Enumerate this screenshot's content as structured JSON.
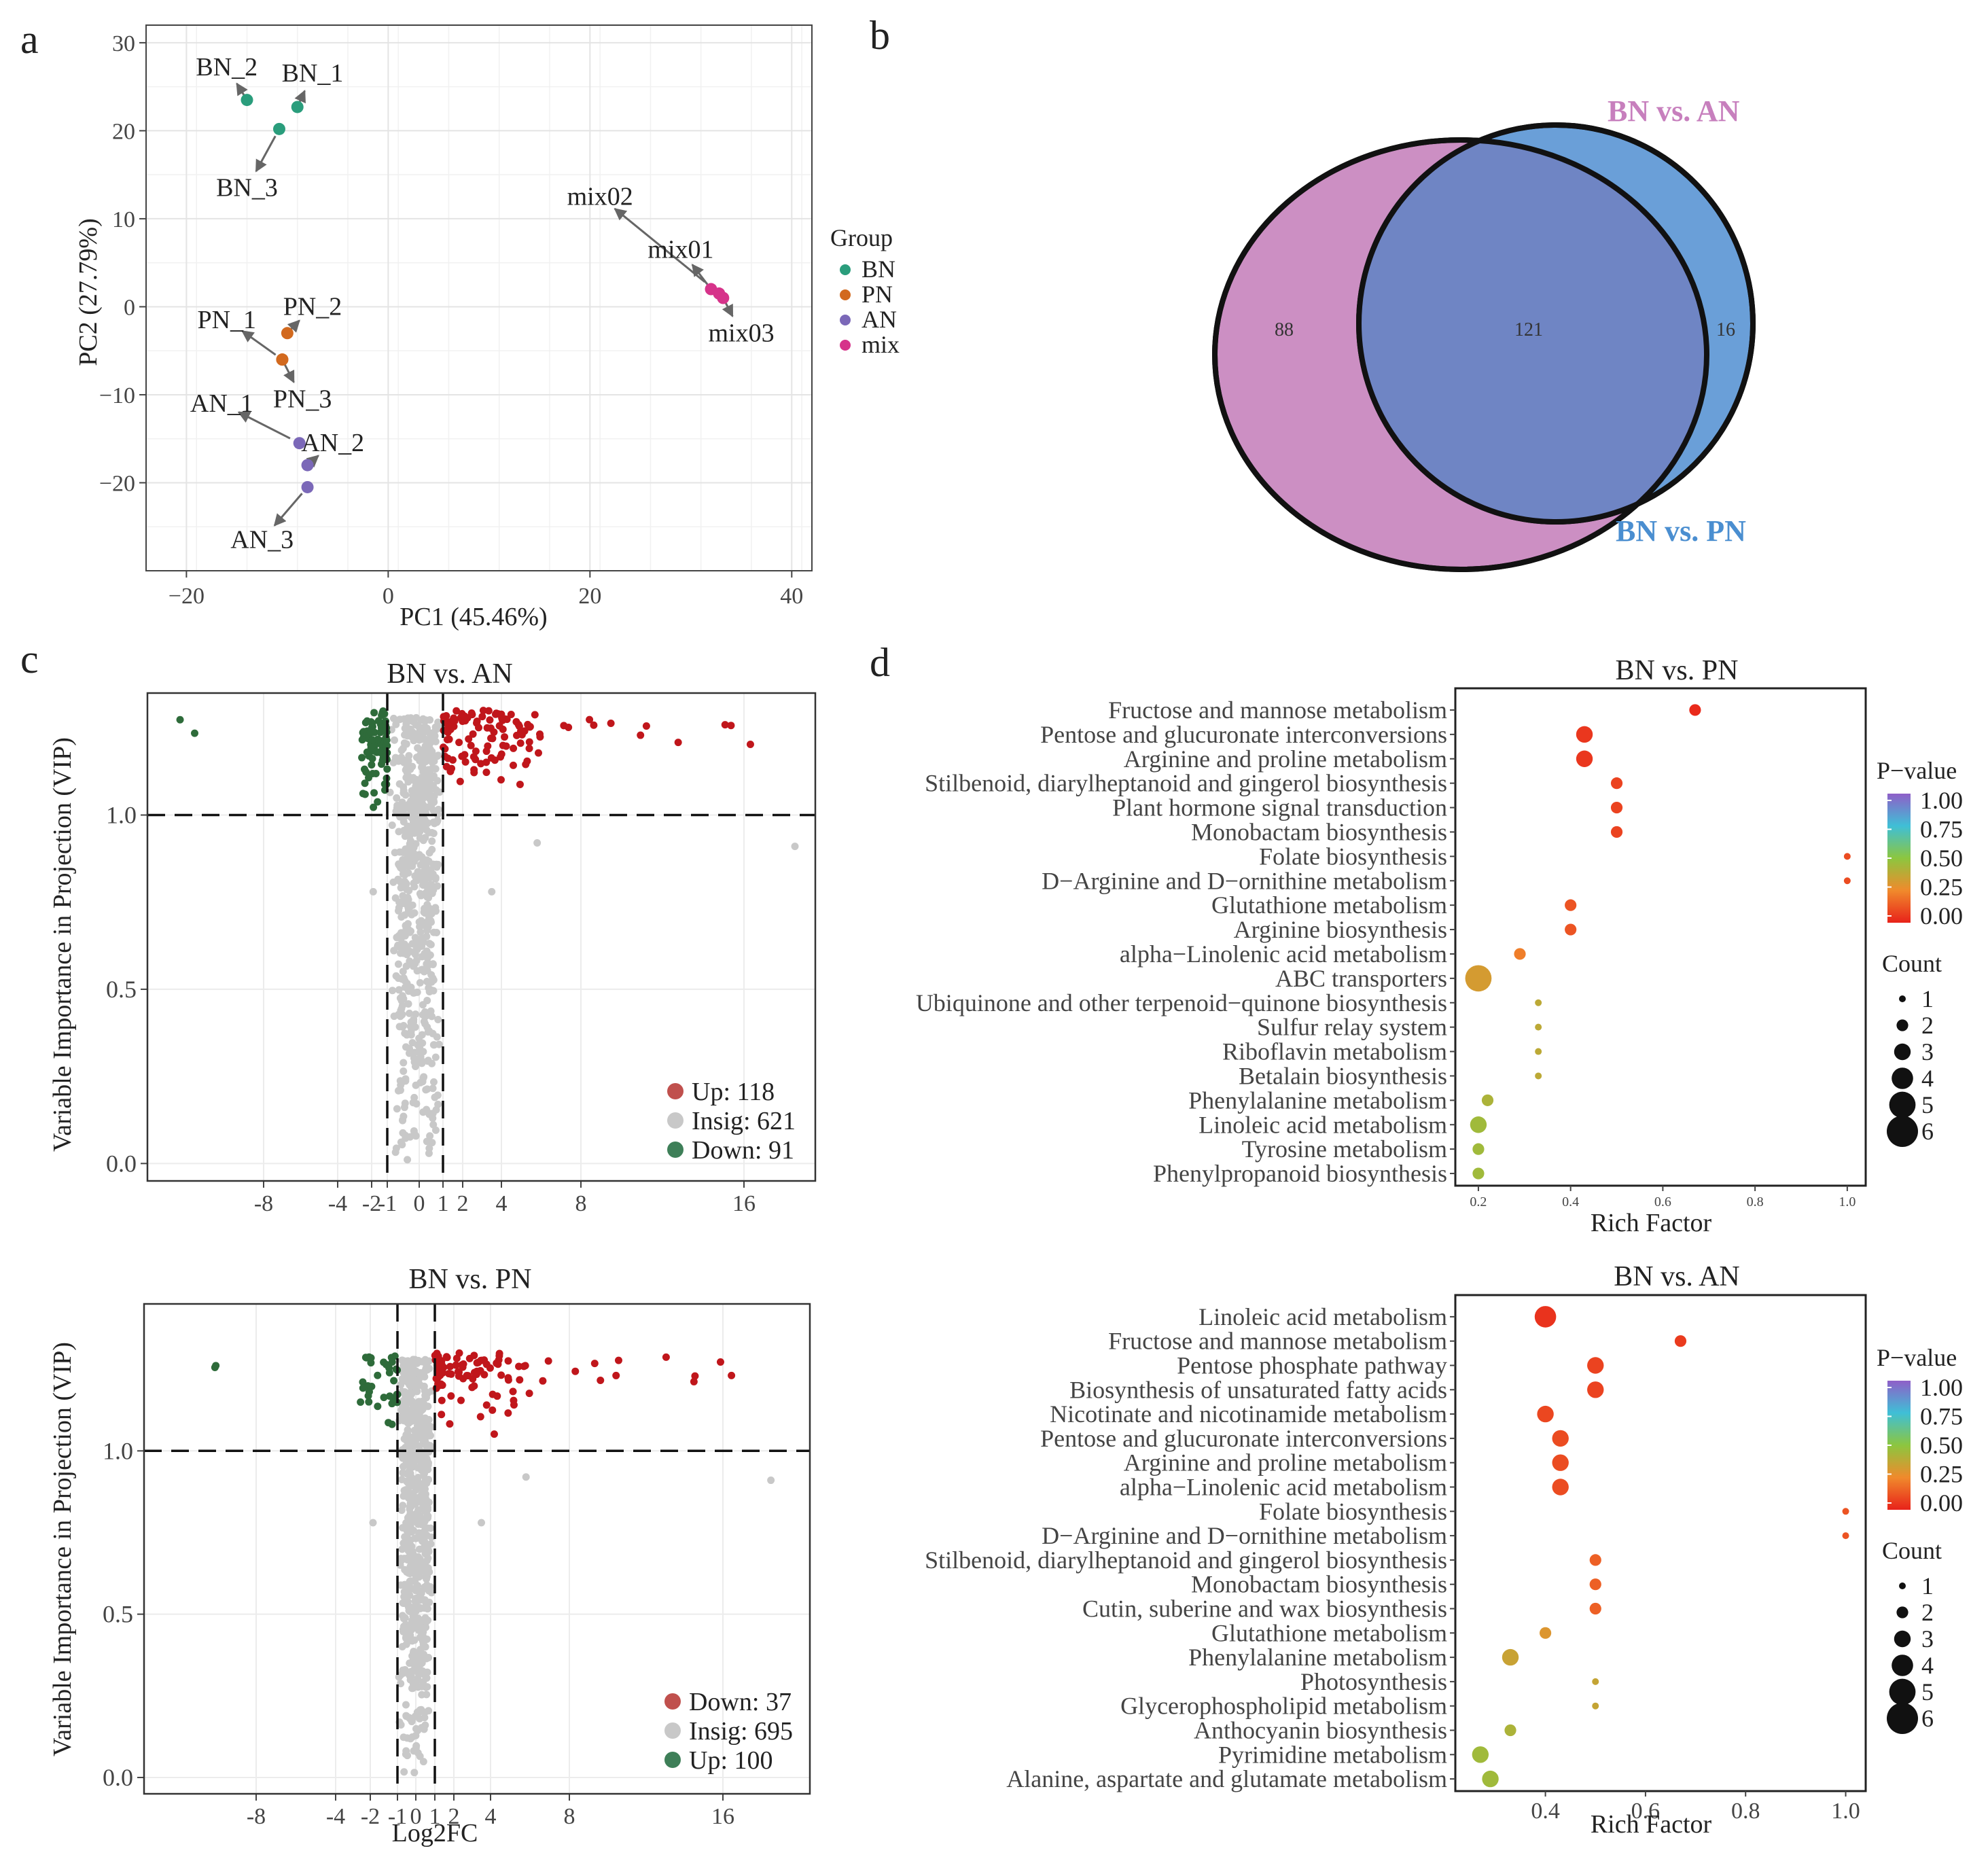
{
  "panel_labels": [
    "a",
    "b",
    "c",
    "d"
  ],
  "chart_data": [
    {
      "panel": "a",
      "type": "scatter",
      "title": "",
      "xlabel": "PC1 (45.46%)",
      "ylabel": "PC2 (27.79%)",
      "xlim": [
        -24,
        42
      ],
      "ylim": [
        -30,
        32
      ],
      "xticks": [
        "−20",
        "0",
        "20",
        "40"
      ],
      "xtick_values": [
        -20,
        0,
        20,
        40
      ],
      "yticks": [
        "30",
        "20",
        "10",
        "0",
        "−10",
        "−20"
      ],
      "ytick_values": [
        30,
        20,
        10,
        0,
        -10,
        -20
      ],
      "legend_title": "Group",
      "legend": [
        {
          "name": "BN",
          "color": "#2a9d7c"
        },
        {
          "name": "PN",
          "color": "#d2691e"
        },
        {
          "name": "AN",
          "color": "#7b68b8"
        },
        {
          "name": "mix",
          "color": "#d6338a"
        }
      ],
      "points": [
        {
          "label": "BN_1",
          "group": "BN",
          "x": -9,
          "y": 22.7,
          "lx": -7.5,
          "ly": 26.5
        },
        {
          "label": "BN_2",
          "group": "BN",
          "x": -14,
          "y": 23.5,
          "lx": -16,
          "ly": 27.2
        },
        {
          "label": "BN_3",
          "group": "BN",
          "x": -10.8,
          "y": 20.2,
          "lx": -14,
          "ly": 13.5
        },
        {
          "label": "PN_1",
          "group": "PN",
          "x": -10.5,
          "y": -6,
          "lx": -16,
          "ly": -1.5
        },
        {
          "label": "PN_2",
          "group": "PN",
          "x": -10,
          "y": -3,
          "lx": -7.5,
          "ly": 0
        },
        {
          "label": "PN_3",
          "group": "PN",
          "x": -10.5,
          "y": -6,
          "lx": -8.5,
          "ly": -10.5
        },
        {
          "label": "AN_1",
          "group": "AN",
          "x": -8.8,
          "y": -15.5,
          "lx": -16.5,
          "ly": -11
        },
        {
          "label": "AN_2",
          "group": "AN",
          "x": -8,
          "y": -18,
          "lx": -5.5,
          "ly": -15.5
        },
        {
          "label": "AN_3",
          "group": "AN",
          "x": -8,
          "y": -20.5,
          "lx": -12.5,
          "ly": -26.5
        },
        {
          "label": "mix01",
          "group": "mix",
          "x": 32,
          "y": 2,
          "lx": 29,
          "ly": 6.5
        },
        {
          "label": "mix02",
          "group": "mix",
          "x": 32.8,
          "y": 1.5,
          "lx": 21,
          "ly": 12.5
        },
        {
          "label": "mix03",
          "group": "mix",
          "x": 33.2,
          "y": 1,
          "lx": 35,
          "ly": -3
        }
      ]
    },
    {
      "panel": "b",
      "type": "venn",
      "sets": [
        {
          "name": "BN vs. AN",
          "color": "#cc8fc3"
        },
        {
          "name": "BN vs. PN",
          "color": "#6a9fd8"
        }
      ],
      "intersection_color": "#6f85c4",
      "counts": {
        "only_a": "88",
        "both": "121",
        "only_b": "16"
      }
    },
    {
      "panel": "c-top",
      "type": "scatter",
      "title": "BN vs. AN",
      "xlabel": "",
      "ylabel": "Variable Importance in Projection (VIP)",
      "x_tick_labels": [
        "-8",
        "-4",
        "-2",
        "-1",
        "0",
        "1",
        "2",
        "4",
        "8",
        "16"
      ],
      "x_tick_values": [
        -8,
        -4,
        -2,
        -1,
        0,
        1,
        2,
        4,
        8,
        16
      ],
      "y_tick_labels": [
        "0.0",
        "0.5",
        "1.0"
      ],
      "y_tick_values": [
        0.0,
        0.5,
        1.0
      ],
      "ylim": [
        -0.05,
        1.35
      ],
      "thresholds": {
        "vip": 1.0,
        "log2fc": [
          -1,
          1
        ]
      },
      "legend": [
        {
          "name": "Up: 118",
          "color": "#c0504d"
        },
        {
          "name": "Insig: 621",
          "color": "#c8c8c8"
        },
        {
          "name": "Down: 91",
          "color": "#3e7f58"
        }
      ],
      "series": [
        {
          "name": "Up",
          "color": "#c0161b",
          "n": 118
        },
        {
          "name": "Insig",
          "color": "#c8c8c8",
          "n": 621
        },
        {
          "name": "Down",
          "color": "#2e6b3a",
          "n": 91
        }
      ]
    },
    {
      "panel": "c-bottom",
      "type": "scatter",
      "title": "BN vs. PN",
      "xlabel": "Log2FC",
      "ylabel": "Variable Importance in Projection (VIP)",
      "x_tick_labels": [
        "-8",
        "-4",
        "-2",
        "-1",
        "0",
        "1",
        "2",
        "4",
        "8",
        "16"
      ],
      "x_tick_values": [
        -8,
        -4,
        -2,
        -1,
        0,
        1,
        2,
        4,
        8,
        16
      ],
      "y_tick_labels": [
        "0.0",
        "0.5",
        "1.0"
      ],
      "y_tick_values": [
        0.0,
        0.5,
        1.0
      ],
      "ylim": [
        -0.05,
        1.45
      ],
      "thresholds": {
        "vip": 1.0,
        "log2fc": [
          -1,
          1
        ]
      },
      "legend": [
        {
          "name": "Down: 37",
          "color": "#c0504d"
        },
        {
          "name": "Insig: 695",
          "color": "#c8c8c8"
        },
        {
          "name": "Up: 100",
          "color": "#3e7f58"
        }
      ],
      "series": [
        {
          "name": "Up",
          "color": "#c0161b",
          "n": 100
        },
        {
          "name": "Insig",
          "color": "#c8c8c8",
          "n": 695
        },
        {
          "name": "Down",
          "color": "#2e6b3a",
          "n": 37
        }
      ]
    },
    {
      "panel": "d-top",
      "type": "scatter",
      "subtype": "kegg-bubble",
      "title": "BN vs. PN",
      "xlabel": "Rich Factor",
      "xlim": [
        0.15,
        1.04
      ],
      "x_tick_labels": [
        "0.2",
        "0.4",
        "0.6",
        "0.8",
        "1.0"
      ],
      "x_tick_values": [
        0.2,
        0.4,
        0.6,
        0.8,
        1.0
      ],
      "pathways": [
        {
          "name": "Fructose and mannose metabolism",
          "rich": 0.67,
          "p": 0.02,
          "count": 2
        },
        {
          "name": "Pentose and glucuronate interconversions",
          "rich": 0.43,
          "p": 0.05,
          "count": 3
        },
        {
          "name": "Arginine and proline metabolism",
          "rich": 0.43,
          "p": 0.05,
          "count": 3
        },
        {
          "name": "Stilbenoid, diarylheptanoid and gingerol biosynthesis",
          "rich": 0.5,
          "p": 0.08,
          "count": 2
        },
        {
          "name": "Plant hormone signal transduction",
          "rich": 0.5,
          "p": 0.08,
          "count": 2
        },
        {
          "name": "Monobactam biosynthesis",
          "rich": 0.5,
          "p": 0.08,
          "count": 2
        },
        {
          "name": "Folate biosynthesis",
          "rich": 1.0,
          "p": 0.1,
          "count": 1
        },
        {
          "name": "D−Arginine and D−ornithine metabolism",
          "rich": 1.0,
          "p": 0.1,
          "count": 1
        },
        {
          "name": "Glutathione metabolism",
          "rich": 0.4,
          "p": 0.12,
          "count": 2
        },
        {
          "name": "Arginine biosynthesis",
          "rich": 0.4,
          "p": 0.12,
          "count": 2
        },
        {
          "name": "alpha−Linolenic acid metabolism",
          "rich": 0.29,
          "p": 0.22,
          "count": 2
        },
        {
          "name": "ABC transporters",
          "rich": 0.2,
          "p": 0.32,
          "count": 5
        },
        {
          "name": "Ubiquinone and other terpenoid−quinone biosynthesis",
          "rich": 0.33,
          "p": 0.38,
          "count": 1
        },
        {
          "name": "Sulfur relay system",
          "rich": 0.33,
          "p": 0.38,
          "count": 1
        },
        {
          "name": "Riboflavin metabolism",
          "rich": 0.33,
          "p": 0.38,
          "count": 1
        },
        {
          "name": "Betalain biosynthesis",
          "rich": 0.33,
          "p": 0.38,
          "count": 1
        },
        {
          "name": "Phenylalanine metabolism",
          "rich": 0.22,
          "p": 0.42,
          "count": 2
        },
        {
          "name": "Linoleic acid metabolism",
          "rich": 0.2,
          "p": 0.45,
          "count": 3
        },
        {
          "name": "Tyrosine metabolism",
          "rich": 0.2,
          "p": 0.45,
          "count": 2
        },
        {
          "name": "Phenylpropanoid biosynthesis",
          "rich": 0.2,
          "p": 0.45,
          "count": 2
        }
      ],
      "legend_colorbar_title": "P−value",
      "colorbar_labels": [
        "1.00",
        "0.75",
        "0.50",
        "0.25",
        "0.00"
      ],
      "legend_size_title": "Count",
      "size_labels": [
        "1",
        "2",
        "3",
        "4",
        "5",
        "6"
      ]
    },
    {
      "panel": "d-bottom",
      "type": "scatter",
      "subtype": "kegg-bubble",
      "title": "BN vs. AN",
      "xlabel": "Rich Factor",
      "xlim": [
        0.22,
        1.04
      ],
      "x_tick_labels": [
        "0.4",
        "0.6",
        "0.8",
        "1.0"
      ],
      "x_tick_values": [
        0.4,
        0.6,
        0.8,
        1.0
      ],
      "pathways": [
        {
          "name": "Linoleic acid metabolism",
          "rich": 0.4,
          "p": 0.04,
          "count": 4
        },
        {
          "name": "Fructose and mannose metabolism",
          "rich": 0.67,
          "p": 0.06,
          "count": 2
        },
        {
          "name": "Pentose phosphate pathway",
          "rich": 0.5,
          "p": 0.08,
          "count": 3
        },
        {
          "name": "Biosynthesis of unsaturated fatty acids",
          "rich": 0.5,
          "p": 0.08,
          "count": 3
        },
        {
          "name": "Nicotinate and nicotinamide metabolism",
          "rich": 0.4,
          "p": 0.09,
          "count": 3
        },
        {
          "name": "Pentose and glucuronate interconversions",
          "rich": 0.43,
          "p": 0.1,
          "count": 3
        },
        {
          "name": "Arginine and proline metabolism",
          "rich": 0.43,
          "p": 0.1,
          "count": 3
        },
        {
          "name": "alpha−Linolenic acid metabolism",
          "rich": 0.43,
          "p": 0.1,
          "count": 3
        },
        {
          "name": "Folate biosynthesis",
          "rich": 1.0,
          "p": 0.12,
          "count": 1
        },
        {
          "name": "D−Arginine and D−ornithine metabolism",
          "rich": 1.0,
          "p": 0.12,
          "count": 1
        },
        {
          "name": "Stilbenoid, diarylheptanoid and gingerol biosynthesis",
          "rich": 0.5,
          "p": 0.15,
          "count": 2
        },
        {
          "name": "Monobactam biosynthesis",
          "rich": 0.5,
          "p": 0.15,
          "count": 2
        },
        {
          "name": "Cutin, suberine and wax biosynthesis",
          "rich": 0.5,
          "p": 0.15,
          "count": 2
        },
        {
          "name": "Glutathione metabolism",
          "rich": 0.4,
          "p": 0.3,
          "count": 2
        },
        {
          "name": "Phenylalanine metabolism",
          "rich": 0.33,
          "p": 0.35,
          "count": 3
        },
        {
          "name": "Photosynthesis",
          "rich": 0.5,
          "p": 0.36,
          "count": 1
        },
        {
          "name": "Glycerophospholipid metabolism",
          "rich": 0.5,
          "p": 0.36,
          "count": 1
        },
        {
          "name": "Anthocyanin biosynthesis",
          "rich": 0.33,
          "p": 0.42,
          "count": 2
        },
        {
          "name": "Pyrimidine metabolism",
          "rich": 0.27,
          "p": 0.45,
          "count": 3
        },
        {
          "name": "Alanine, aspartate and glutamate metabolism",
          "rich": 0.29,
          "p": 0.45,
          "count": 3
        }
      ],
      "legend_colorbar_title": "P−value",
      "colorbar_labels": [
        "1.00",
        "0.75",
        "0.50",
        "0.25",
        "0.00"
      ],
      "legend_size_title": "Count",
      "size_labels": [
        "1",
        "2",
        "3",
        "4",
        "5",
        "6"
      ]
    }
  ]
}
